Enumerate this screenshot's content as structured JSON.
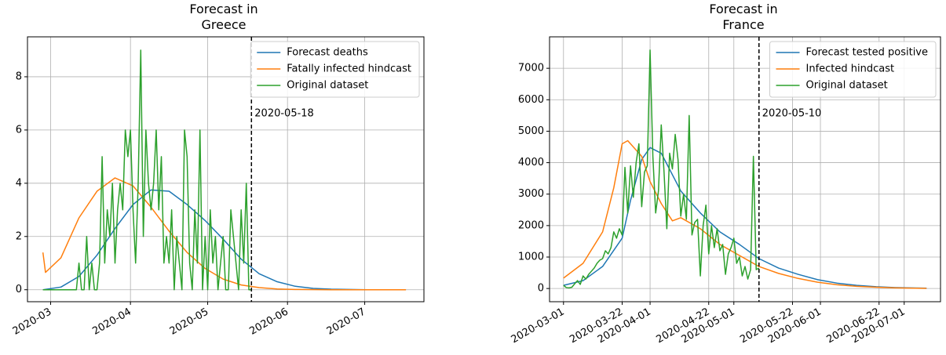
{
  "chart_data": [
    {
      "type": "line",
      "title": "Forecast in\nGreece",
      "xlim": [
        "2020-02-21",
        "2020-07-24"
      ],
      "ylim": [
        -0.45,
        9.5
      ],
      "xticks": [
        "2020-03",
        "2020-04",
        "2020-05",
        "2020-06",
        "2020-07"
      ],
      "yticks": [
        0,
        2,
        4,
        6,
        8
      ],
      "grid": true,
      "legend": "upper right",
      "vline": "2020-05-18",
      "series": [
        {
          "name": "Forecast deaths",
          "color": "#1f77b4",
          "x": [
            "2020-02-27",
            "2020-03-05",
            "2020-03-12",
            "2020-03-19",
            "2020-03-26",
            "2020-04-02",
            "2020-04-09",
            "2020-04-16",
            "2020-04-23",
            "2020-04-30",
            "2020-05-07",
            "2020-05-14",
            "2020-05-21",
            "2020-05-28",
            "2020-06-04",
            "2020-06-11",
            "2020-06-18",
            "2020-06-25",
            "2020-07-02",
            "2020-07-09",
            "2020-07-17"
          ],
          "values": [
            0,
            0.1,
            0.5,
            1.3,
            2.3,
            3.2,
            3.75,
            3.7,
            3.2,
            2.6,
            1.9,
            1.15,
            0.6,
            0.3,
            0.13,
            0.05,
            0.02,
            0.01,
            0,
            0,
            0
          ]
        },
        {
          "name": "Fatally infected hindcast",
          "color": "#ff7f0e",
          "x": [
            "2020-02-27",
            "2020-02-28",
            "2020-03-05",
            "2020-03-12",
            "2020-03-19",
            "2020-03-26",
            "2020-04-02",
            "2020-04-09",
            "2020-04-16",
            "2020-04-23",
            "2020-04-30",
            "2020-05-07",
            "2020-05-14",
            "2020-05-21",
            "2020-05-28",
            "2020-06-04",
            "2020-06-18",
            "2020-07-02",
            "2020-07-17"
          ],
          "values": [
            1.4,
            0.65,
            1.2,
            2.7,
            3.7,
            4.2,
            3.9,
            3.1,
            2.2,
            1.4,
            0.8,
            0.4,
            0.18,
            0.08,
            0.03,
            0.01,
            0,
            0,
            0
          ]
        },
        {
          "name": "Original dataset",
          "color": "#2ca02c",
          "x": [
            "2020-02-27",
            "2020-02-28",
            "2020-02-29",
            "2020-03-01",
            "2020-03-02",
            "2020-03-03",
            "2020-03-04",
            "2020-03-05",
            "2020-03-06",
            "2020-03-07",
            "2020-03-08",
            "2020-03-09",
            "2020-03-10",
            "2020-03-11",
            "2020-03-12",
            "2020-03-13",
            "2020-03-14",
            "2020-03-15",
            "2020-03-16",
            "2020-03-17",
            "2020-03-18",
            "2020-03-19",
            "2020-03-20",
            "2020-03-21",
            "2020-03-22",
            "2020-03-23",
            "2020-03-24",
            "2020-03-25",
            "2020-03-26",
            "2020-03-27",
            "2020-03-28",
            "2020-03-29",
            "2020-03-30",
            "2020-03-31",
            "2020-04-01",
            "2020-04-02",
            "2020-04-03",
            "2020-04-04",
            "2020-04-05",
            "2020-04-06",
            "2020-04-07",
            "2020-04-08",
            "2020-04-09",
            "2020-04-10",
            "2020-04-11",
            "2020-04-12",
            "2020-04-13",
            "2020-04-14",
            "2020-04-15",
            "2020-04-16",
            "2020-04-17",
            "2020-04-18",
            "2020-04-19",
            "2020-04-20",
            "2020-04-21",
            "2020-04-22",
            "2020-04-23",
            "2020-04-24",
            "2020-04-25",
            "2020-04-26",
            "2020-04-27",
            "2020-04-28",
            "2020-04-29",
            "2020-04-30",
            "2020-05-01",
            "2020-05-02",
            "2020-05-03",
            "2020-05-04",
            "2020-05-05",
            "2020-05-06",
            "2020-05-07",
            "2020-05-08",
            "2020-05-09",
            "2020-05-10",
            "2020-05-11",
            "2020-05-12",
            "2020-05-13",
            "2020-05-14",
            "2020-05-15",
            "2020-05-16",
            "2020-05-17",
            "2020-05-18"
          ],
          "values": [
            0,
            0,
            0,
            0,
            0,
            0,
            0,
            0,
            0,
            0,
            0,
            0,
            0,
            0,
            1,
            0,
            0,
            2,
            0,
            1,
            0,
            0,
            1,
            5,
            1,
            3,
            2,
            4,
            1,
            3,
            4,
            3,
            6,
            5,
            6,
            3,
            1,
            4,
            9,
            2,
            6,
            4,
            3,
            4,
            6,
            3,
            5,
            1,
            2,
            1,
            3,
            0,
            2,
            1,
            0,
            6,
            5,
            1,
            0,
            3,
            1,
            6,
            0,
            2,
            0,
            3,
            1,
            2,
            0,
            1,
            2,
            0,
            0,
            3,
            2,
            1,
            0,
            3,
            1,
            4,
            0,
            0
          ]
        }
      ]
    },
    {
      "type": "line",
      "title": "Forecast in\nFrance",
      "xlim": [
        "2020-02-25",
        "2020-07-14"
      ],
      "ylim": [
        -420,
        8000
      ],
      "xticks": [
        "2020-03-01",
        "2020-03-22",
        "2020-04-01",
        "2020-04-22",
        "2020-05-01",
        "2020-05-22",
        "2020-06-01",
        "2020-06-22",
        "2020-07-01"
      ],
      "yticks": [
        0,
        1000,
        2000,
        3000,
        4000,
        5000,
        6000,
        7000
      ],
      "grid": true,
      "legend": "upper right",
      "vline": "2020-05-10",
      "series": [
        {
          "name": "Forecast tested positive",
          "color": "#1f77b4",
          "x": [
            "2020-03-01",
            "2020-03-08",
            "2020-03-15",
            "2020-03-22",
            "2020-03-25",
            "2020-03-29",
            "2020-04-01",
            "2020-04-05",
            "2020-04-12",
            "2020-04-19",
            "2020-04-26",
            "2020-05-03",
            "2020-05-10",
            "2020-05-17",
            "2020-05-24",
            "2020-05-31",
            "2020-06-07",
            "2020-06-14",
            "2020-06-21",
            "2020-06-28",
            "2020-07-05",
            "2020-07-09"
          ],
          "values": [
            100,
            250,
            700,
            1600,
            2800,
            4100,
            4480,
            4300,
            3100,
            2400,
            1800,
            1400,
            950,
            650,
            450,
            280,
            170,
            100,
            55,
            30,
            15,
            10
          ]
        },
        {
          "name": "Infected hindcast",
          "color": "#ff7f0e",
          "x": [
            "2020-03-01",
            "2020-03-08",
            "2020-03-15",
            "2020-03-19",
            "2020-03-22",
            "2020-03-24",
            "2020-03-29",
            "2020-04-01",
            "2020-04-05",
            "2020-04-09",
            "2020-04-12",
            "2020-04-19",
            "2020-04-26",
            "2020-05-03",
            "2020-05-10",
            "2020-05-17",
            "2020-05-24",
            "2020-05-31",
            "2020-06-07",
            "2020-06-14",
            "2020-06-21",
            "2020-06-28",
            "2020-07-05",
            "2020-07-09"
          ],
          "values": [
            330,
            800,
            1800,
            3200,
            4600,
            4700,
            4200,
            3400,
            2700,
            2150,
            2250,
            1900,
            1400,
            1050,
            700,
            480,
            320,
            200,
            120,
            70,
            40,
            20,
            10,
            5
          ]
        },
        {
          "name": "Original dataset",
          "color": "#2ca02c",
          "x": [
            "2020-03-01",
            "2020-03-02",
            "2020-03-03",
            "2020-03-04",
            "2020-03-05",
            "2020-03-06",
            "2020-03-07",
            "2020-03-08",
            "2020-03-09",
            "2020-03-10",
            "2020-03-11",
            "2020-03-12",
            "2020-03-13",
            "2020-03-14",
            "2020-03-15",
            "2020-03-16",
            "2020-03-17",
            "2020-03-18",
            "2020-03-19",
            "2020-03-20",
            "2020-03-21",
            "2020-03-22",
            "2020-03-23",
            "2020-03-24",
            "2020-03-25",
            "2020-03-26",
            "2020-03-27",
            "2020-03-28",
            "2020-03-29",
            "2020-03-30",
            "2020-03-31",
            "2020-04-01",
            "2020-04-02",
            "2020-04-03",
            "2020-04-04",
            "2020-04-05",
            "2020-04-06",
            "2020-04-07",
            "2020-04-08",
            "2020-04-09",
            "2020-04-10",
            "2020-04-11",
            "2020-04-12",
            "2020-04-13",
            "2020-04-14",
            "2020-04-15",
            "2020-04-16",
            "2020-04-17",
            "2020-04-18",
            "2020-04-19",
            "2020-04-20",
            "2020-04-21",
            "2020-04-22",
            "2020-04-23",
            "2020-04-24",
            "2020-04-25",
            "2020-04-26",
            "2020-04-27",
            "2020-04-28",
            "2020-04-29",
            "2020-04-30",
            "2020-05-01",
            "2020-05-02",
            "2020-05-03",
            "2020-05-04",
            "2020-05-05",
            "2020-05-06",
            "2020-05-07",
            "2020-05-08",
            "2020-05-09",
            "2020-05-10"
          ],
          "values": [
            100,
            30,
            20,
            40,
            150,
            250,
            130,
            400,
            300,
            450,
            550,
            650,
            800,
            900,
            950,
            1200,
            1100,
            1300,
            1800,
            1600,
            1900,
            1700,
            3850,
            2400,
            3900,
            2900,
            4000,
            4600,
            2600,
            3700,
            3900,
            7580,
            4200,
            2400,
            3100,
            5200,
            3700,
            1900,
            4300,
            3800,
            4900,
            4100,
            2300,
            3000,
            2200,
            5500,
            1700,
            2100,
            2200,
            400,
            2000,
            2650,
            1100,
            2000,
            1300,
            1900,
            1200,
            1400,
            450,
            1100,
            1300,
            1600,
            800,
            1000,
            400,
            700,
            300,
            600,
            4200,
            600,
            650
          ]
        }
      ]
    }
  ]
}
